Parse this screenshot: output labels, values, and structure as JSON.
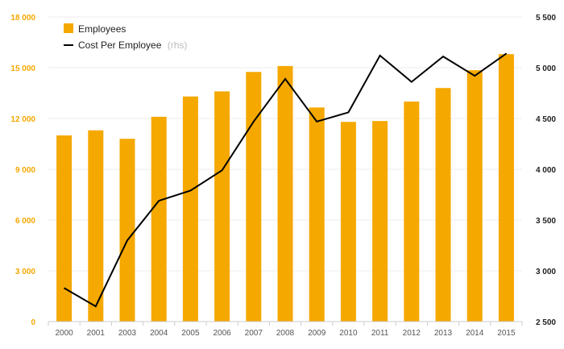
{
  "chart_data": {
    "type": "bar",
    "categories": [
      "2000",
      "2001",
      "2003",
      "2004",
      "2005",
      "2006",
      "2007",
      "2008",
      "2009",
      "2010",
      "2011",
      "2012",
      "2013",
      "2014",
      "2015"
    ],
    "series": [
      {
        "name": "Employees",
        "type": "bar",
        "axis": "left",
        "color": "#f5a800",
        "values": [
          11000,
          11300,
          10800,
          12100,
          13300,
          13600,
          14750,
          15100,
          12650,
          11800,
          11850,
          13000,
          13800,
          14850,
          15800
        ]
      },
      {
        "name": "Cost Per Employee",
        "name_suffix": "(rhs)",
        "type": "line",
        "axis": "right",
        "color": "#000000",
        "values": [
          2830,
          2650,
          3300,
          3690,
          3790,
          3990,
          4470,
          4890,
          4470,
          4560,
          5120,
          4860,
          5110,
          4920,
          5140
        ]
      }
    ],
    "y_left": {
      "ylim": [
        0,
        18000
      ],
      "ticks": [
        "0",
        "3 000",
        "6 000",
        "9 000",
        "12 000",
        "15 000",
        "18 000"
      ],
      "tick_values": [
        0,
        3000,
        6000,
        9000,
        12000,
        15000,
        18000
      ]
    },
    "y_right": {
      "ylim": [
        2500,
        5500
      ],
      "ticks": [
        "2 500",
        "3 000",
        "3 500",
        "4 000",
        "4 500",
        "5 000",
        "5 500"
      ],
      "tick_values": [
        2500,
        3000,
        3500,
        4000,
        4500,
        5000,
        5500
      ]
    },
    "grid": true,
    "legend_position": "top-left"
  }
}
